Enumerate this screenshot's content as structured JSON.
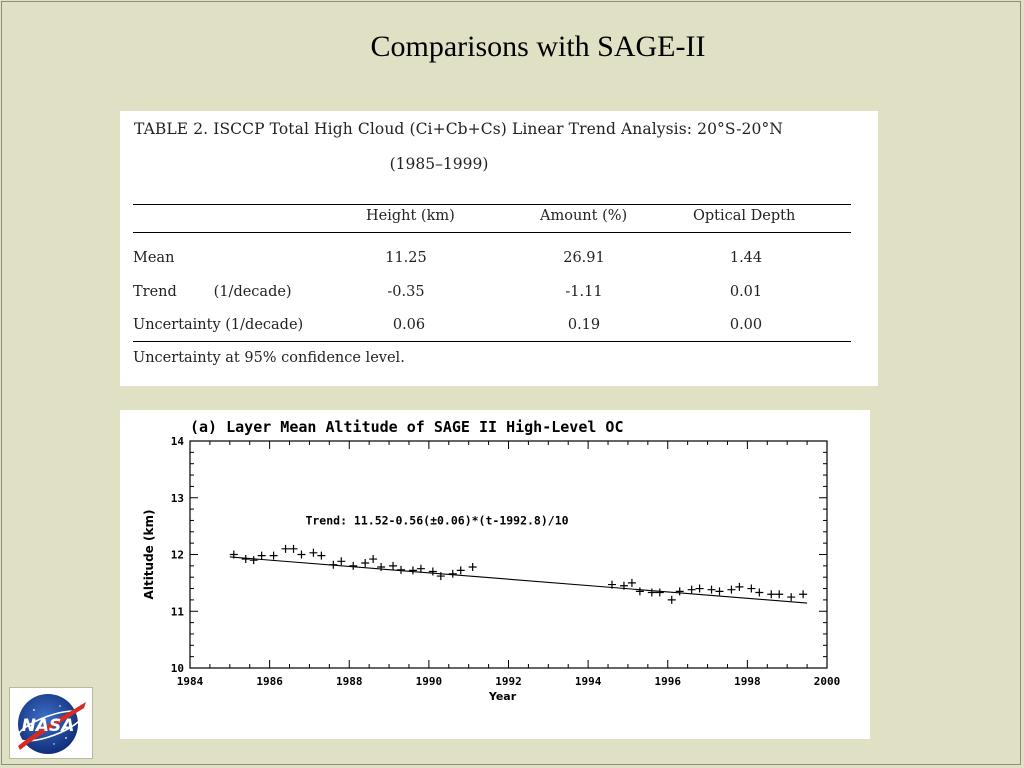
{
  "slide": {
    "title": "Comparisons with SAGE-II"
  },
  "table": {
    "caption_line1": "TABLE 2. ISCCP Total High Cloud (Ci+Cb+Cs) Linear Trend Analysis: 20°S-20°N",
    "caption_line2": "(1985–1999)",
    "headers": [
      "Height (km)",
      "Amount (%)",
      "Optical Depth"
    ],
    "rows": [
      {
        "label": "Mean",
        "values": [
          "11.25",
          "26.91",
          "1.44"
        ]
      },
      {
        "label": "Trend        (1/decade)",
        "values": [
          "-0.35",
          "-1.11",
          "0.01"
        ]
      },
      {
        "label": "Uncertainty (1/decade)",
        "values": [
          "0.06",
          "0.19",
          "0.00"
        ]
      }
    ],
    "footnote": "Uncertainty at 95% confidence level."
  },
  "chart_data": {
    "type": "scatter",
    "title": "(a) Layer Mean Altitude of SAGE II High-Level OC",
    "xlabel": "Year",
    "ylabel": "Altitude (km)",
    "xlim": [
      1984,
      2000
    ],
    "ylim": [
      10,
      14
    ],
    "x_ticks": [
      1984,
      1986,
      1988,
      1990,
      1992,
      1994,
      1996,
      1998,
      2000
    ],
    "x_tick_labels": [
      "1984",
      "1986",
      "1988",
      "1990",
      "1992",
      "1994",
      "1996",
      "1998",
      "2000"
    ],
    "y_ticks": [
      10,
      11,
      12,
      13,
      14
    ],
    "y_tick_labels": [
      "10",
      "11",
      "12",
      "13",
      "14"
    ],
    "grid": false,
    "annotation": "Trend: 11.52-0.56(±0.06)*(t-1992.8)/10",
    "trend": {
      "intercept": 11.52,
      "slope_per_decade": -0.56,
      "t0": 1992.8
    },
    "points": [
      [
        1985.1,
        12.0
      ],
      [
        1985.4,
        11.92
      ],
      [
        1985.6,
        11.9
      ],
      [
        1985.8,
        11.98
      ],
      [
        1986.1,
        11.98
      ],
      [
        1986.4,
        12.1
      ],
      [
        1986.6,
        12.1
      ],
      [
        1986.8,
        12.0
      ],
      [
        1987.1,
        12.03
      ],
      [
        1987.3,
        11.98
      ],
      [
        1987.6,
        11.82
      ],
      [
        1987.8,
        11.88
      ],
      [
        1988.1,
        11.8
      ],
      [
        1988.4,
        11.85
      ],
      [
        1988.6,
        11.92
      ],
      [
        1988.8,
        11.78
      ],
      [
        1989.1,
        11.8
      ],
      [
        1989.3,
        11.73
      ],
      [
        1989.6,
        11.72
      ],
      [
        1989.8,
        11.75
      ],
      [
        1990.1,
        11.7
      ],
      [
        1990.3,
        11.62
      ],
      [
        1990.6,
        11.66
      ],
      [
        1990.8,
        11.72
      ],
      [
        1991.1,
        11.78
      ],
      [
        1994.6,
        11.47
      ],
      [
        1994.9,
        11.45
      ],
      [
        1995.1,
        11.5
      ],
      [
        1995.3,
        11.35
      ],
      [
        1995.6,
        11.33
      ],
      [
        1995.8,
        11.33
      ],
      [
        1996.1,
        11.2
      ],
      [
        1996.3,
        11.35
      ],
      [
        1996.6,
        11.38
      ],
      [
        1996.8,
        11.4
      ],
      [
        1997.1,
        11.38
      ],
      [
        1997.3,
        11.35
      ],
      [
        1997.6,
        11.38
      ],
      [
        1997.8,
        11.43
      ],
      [
        1998.1,
        11.4
      ],
      [
        1998.3,
        11.33
      ],
      [
        1998.6,
        11.3
      ],
      [
        1998.8,
        11.3
      ],
      [
        1999.1,
        11.25
      ],
      [
        1999.4,
        11.3
      ]
    ]
  },
  "logo": {
    "text": "NASA"
  }
}
